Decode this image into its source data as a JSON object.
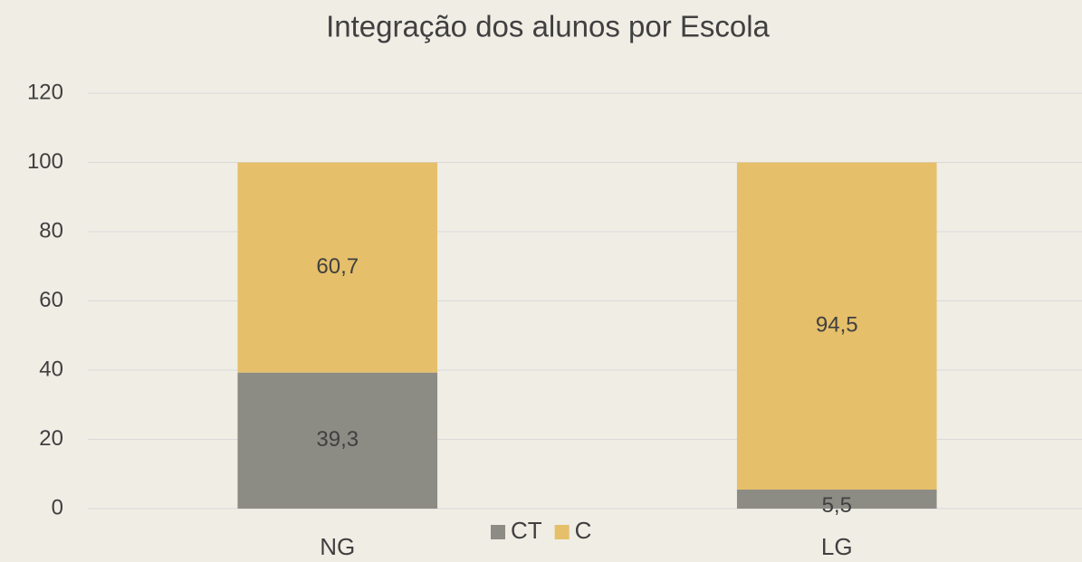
{
  "chart_data": {
    "type": "stacked_bar",
    "title": "Integração dos alunos por Escola",
    "categories": [
      "NG",
      "LG"
    ],
    "series": [
      {
        "name": "CT",
        "color": "#8c8c85",
        "values": [
          39.3,
          5.5
        ],
        "value_labels": [
          "39,3",
          "5,5"
        ]
      },
      {
        "name": "C",
        "color": "#e5bf6a",
        "values": [
          60.7,
          94.5
        ],
        "value_labels": [
          "60,7",
          "94,5"
        ]
      }
    ],
    "ylim": [
      0,
      120
    ],
    "yticks": [
      0,
      20,
      40,
      60,
      80,
      100,
      120
    ],
    "grid": true,
    "legend": "bottom"
  }
}
